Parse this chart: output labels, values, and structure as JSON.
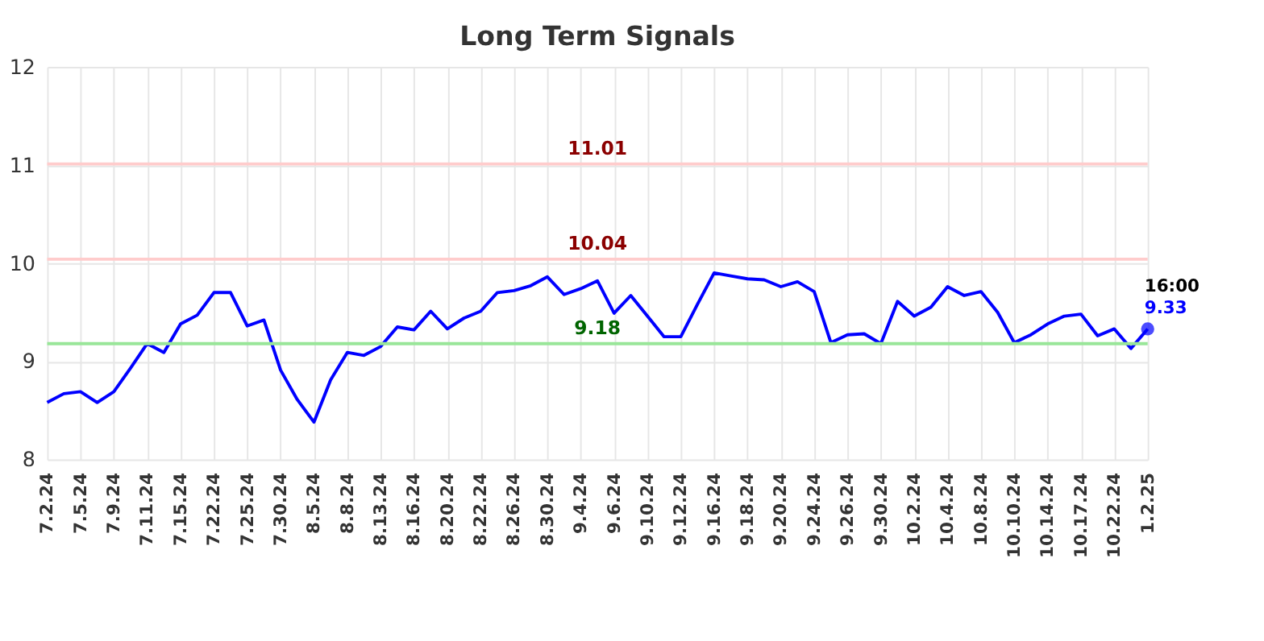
{
  "chart_data": {
    "type": "line",
    "title": "Long Term Signals",
    "categories": [
      "7.2.24",
      null,
      "7.5.24",
      null,
      "7.9.24",
      null,
      "7.11.24",
      null,
      "7.15.24",
      null,
      "7.22.24",
      null,
      "7.25.24",
      null,
      "7.30.24",
      null,
      "8.5.24",
      null,
      "8.8.24",
      null,
      "8.13.24",
      null,
      "8.16.24",
      null,
      "8.20.24",
      null,
      "8.22.24",
      null,
      "8.26.24",
      null,
      "8.30.24",
      null,
      "9.4.24",
      null,
      "9.6.24",
      null,
      "9.10.24",
      null,
      "9.12.24",
      null,
      "9.16.24",
      null,
      "9.18.24",
      null,
      "9.20.24",
      null,
      "9.24.24",
      null,
      "9.26.24",
      null,
      "9.30.24",
      null,
      "10.2.24",
      null,
      "10.4.24",
      null,
      "10.8.24",
      null,
      "10.10.24",
      null,
      "10.14.24",
      null,
      "10.17.24",
      null,
      "10.22.24",
      null,
      "1.2.25"
    ],
    "series": [
      {
        "color": "#0000ff",
        "marker": "none",
        "values": [
          8.58,
          8.67,
          8.69,
          8.58,
          8.69,
          8.93,
          9.18,
          9.09,
          9.38,
          9.47,
          9.7,
          9.7,
          9.36,
          9.42,
          8.91,
          8.61,
          8.38,
          8.81,
          9.09,
          9.06,
          9.15,
          9.35,
          9.32,
          9.51,
          9.33,
          9.44,
          9.51,
          9.7,
          9.72,
          9.77,
          9.86,
          9.68,
          9.74,
          9.82,
          9.49,
          9.67,
          9.46,
          9.25,
          9.25,
          9.58,
          9.9,
          9.87,
          9.84,
          9.83,
          9.76,
          9.81,
          9.71,
          9.19,
          9.27,
          9.28,
          9.18,
          9.61,
          9.46,
          9.55,
          9.76,
          9.67,
          9.71,
          9.5,
          9.19,
          9.27,
          9.38,
          9.46,
          9.48,
          9.26,
          9.33,
          9.13,
          9.33
        ]
      },
      {
        "type": "scatter",
        "color": "#0000ff",
        "marker": "circle",
        "x": [
          "1.2.25"
        ],
        "values": [
          9.33
        ],
        "value_labels": [
          "9.33"
        ]
      }
    ],
    "ylim": [
      8,
      12
    ],
    "yticks": [
      8,
      9,
      10,
      11,
      12
    ],
    "grid": true,
    "ref_lines": [
      {
        "axis": "y",
        "value": 11.01,
        "label": "11.01",
        "color": "#ffcccc"
      },
      {
        "axis": "y",
        "value": 10.04,
        "label": "10.04",
        "color": "#ffcccc"
      },
      {
        "axis": "y",
        "value": 9.18,
        "label": "9.18",
        "color": "#99e699"
      }
    ],
    "annotations": [
      {
        "text": "16:00",
        "x": "1.2.25",
        "y": 9.33
      }
    ]
  }
}
